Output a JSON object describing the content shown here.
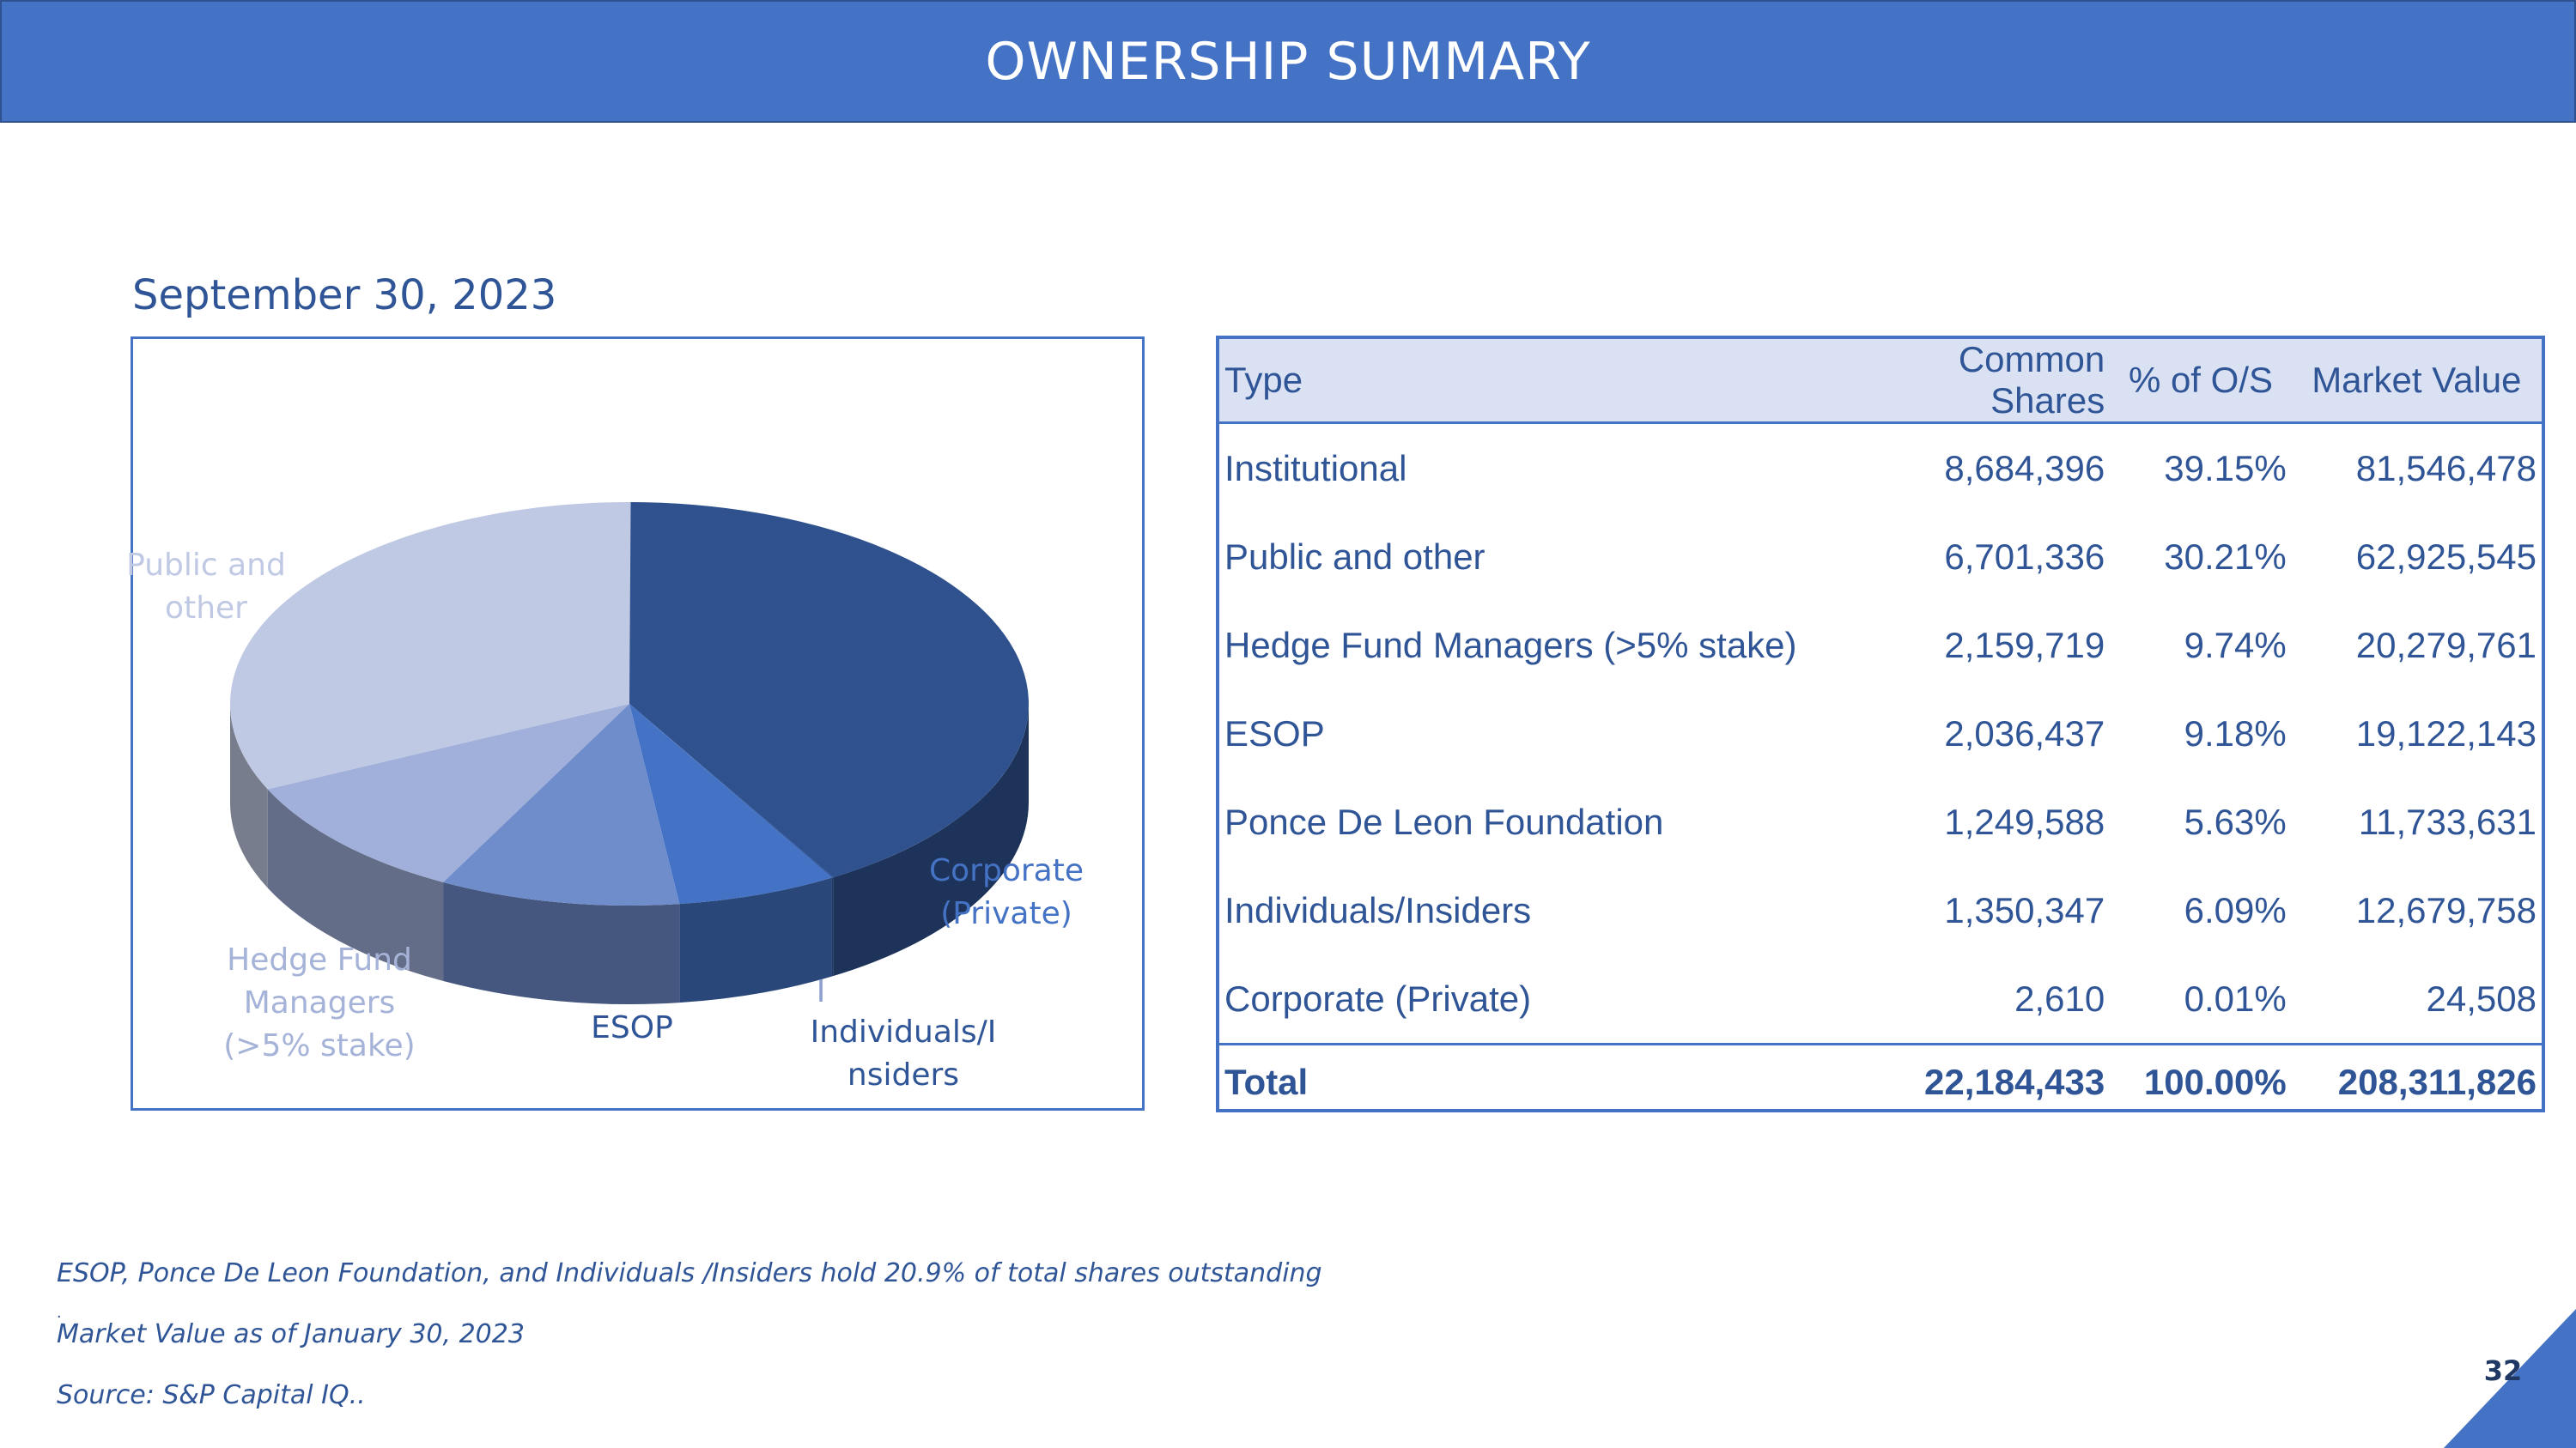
{
  "header": {
    "title": "OWNERSHIP SUMMARY"
  },
  "chart_data": {
    "type": "pie",
    "title": "September 30, 2023",
    "slices": [
      {
        "label": "Institutional",
        "value": 39.15,
        "color": "#2f528f",
        "show_label": false
      },
      {
        "label": "Corporate (Private)",
        "value": 0.01,
        "color": "#2e5aa8",
        "show_label": true
      },
      {
        "label": "Individuals/Insiders",
        "value": 6.09,
        "color": "#4472c4",
        "show_label": true
      },
      {
        "label": "ESOP",
        "value": 9.18,
        "color": "#6f8ccb",
        "show_label": true
      },
      {
        "label": "Hedge Fund Managers (>5% stake)",
        "value": 9.74,
        "color": "#a1b0da",
        "show_label": true
      },
      {
        "label": "Public and other",
        "value": 30.21,
        "color": "#c0c9e4",
        "show_label": true
      }
    ],
    "labels": {
      "corporate": [
        "Corporate",
        "(Private)"
      ],
      "individuals": [
        "Individuals/I",
        "nsiders"
      ],
      "individuals_tick": "I",
      "esop": [
        "ESOP"
      ],
      "hedge": [
        "Hedge Fund",
        "Managers",
        "(>5% stake)"
      ],
      "public": [
        "Public and",
        "other"
      ]
    }
  },
  "table": {
    "headers": [
      "Type",
      "Common Shares",
      "% of O/S",
      "Market Value"
    ],
    "rows": [
      {
        "type": "Institutional",
        "shares": "8,684,396",
        "pct": "39.15%",
        "mv": "81,546,478"
      },
      {
        "type": "Public and other",
        "shares": "6,701,336",
        "pct": "30.21%",
        "mv": "62,925,545"
      },
      {
        "type": "Hedge Fund Managers (>5% stake)",
        "shares": "2,159,719",
        "pct": "9.74%",
        "mv": "20,279,761"
      },
      {
        "type": "ESOP",
        "shares": "2,036,437",
        "pct": "9.18%",
        "mv": "19,122,143"
      },
      {
        "type": "Ponce De Leon Foundation",
        "shares": "1,249,588",
        "pct": "5.63%",
        "mv": "11,733,631"
      },
      {
        "type": "Individuals/Insiders",
        "shares": "1,350,347",
        "pct": "6.09%",
        "mv": "12,679,758"
      },
      {
        "type": "Corporate (Private)",
        "shares": "2,610",
        "pct": "0.01%",
        "mv": "24,508"
      }
    ],
    "total": {
      "type": "Total",
      "shares": "22,184,433",
      "pct": "100.00%",
      "mv": "208,311,826"
    }
  },
  "footnotes": {
    "line1": "ESOP, Ponce De Leon Foundation, and Individuals /Insiders hold 20.9% of total shares outstanding",
    "dot": ".",
    "line2": "Market Value as of January 30, 2023",
    "line3": "Source: S&P Capital IQ.."
  },
  "page": {
    "number": "32"
  }
}
